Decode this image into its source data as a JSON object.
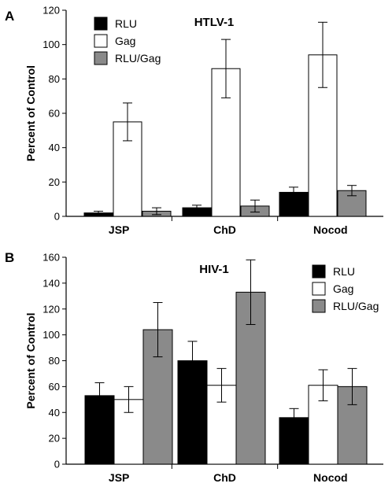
{
  "chart_data": [
    {
      "type": "bar",
      "panel": "A",
      "title": "HTLV-1",
      "ylabel": "Percent of Control",
      "xlabel": "",
      "ylim": [
        0,
        120
      ],
      "yticks": [
        0,
        20,
        40,
        60,
        80,
        100,
        120
      ],
      "categories": [
        "JSP",
        "ChD",
        "Nocod"
      ],
      "legend_position": "top-left",
      "series": [
        {
          "name": "RLU",
          "color": "#000000",
          "values": [
            2,
            5,
            14
          ],
          "errors": [
            1,
            1.5,
            3
          ]
        },
        {
          "name": "Gag",
          "color": "#ffffff",
          "values": [
            55,
            86,
            94
          ],
          "errors": [
            11,
            17,
            19
          ]
        },
        {
          "name": "RLU/Gag",
          "color": "#8a8a8a",
          "values": [
            3,
            6,
            15
          ],
          "errors": [
            2,
            3.5,
            3
          ]
        }
      ]
    },
    {
      "type": "bar",
      "panel": "B",
      "title": "HIV-1",
      "ylabel": "Percent of Control",
      "xlabel": "",
      "ylim": [
        0,
        160
      ],
      "yticks": [
        0,
        20,
        40,
        60,
        80,
        100,
        120,
        140,
        160
      ],
      "categories": [
        "JSP",
        "ChD",
        "Nocod"
      ],
      "legend_position": "top-right",
      "series": [
        {
          "name": "RLU",
          "color": "#000000",
          "values": [
            53,
            80,
            36
          ],
          "errors": [
            10,
            15,
            7
          ]
        },
        {
          "name": "Gag",
          "color": "#ffffff",
          "values": [
            50,
            61,
            61
          ],
          "errors": [
            10,
            13,
            12
          ]
        },
        {
          "name": "RLU/Gag",
          "color": "#8a8a8a",
          "values": [
            104,
            133,
            60
          ],
          "errors": [
            21,
            25,
            14
          ]
        }
      ]
    }
  ]
}
